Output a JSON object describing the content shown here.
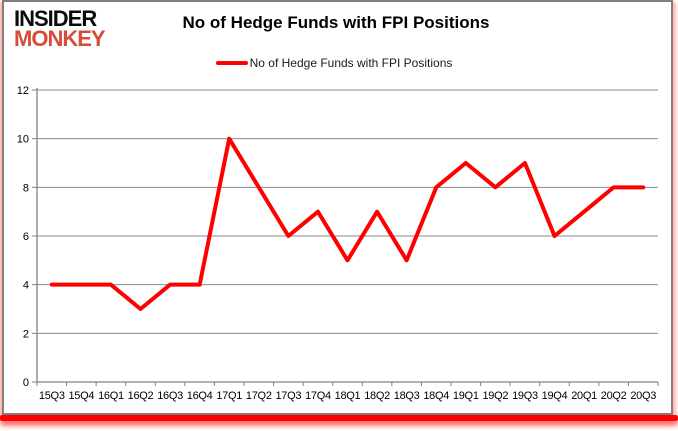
{
  "logo": {
    "line1": "INSIDER",
    "line2": "MONKEY",
    "line1_color": "#0b0b0b",
    "line2_color": "#d54c3b"
  },
  "title": "No of Hedge Funds with FPI Positions",
  "legend": {
    "label": "No of Hedge Funds with FPI Positions",
    "line_color": "#ff0000"
  },
  "chart_data": {
    "type": "line",
    "title": "No of Hedge Funds with FPI Positions",
    "categories": [
      "15Q3",
      "15Q4",
      "16Q1",
      "16Q2",
      "16Q3",
      "16Q4",
      "17Q1",
      "17Q2",
      "17Q3",
      "17Q4",
      "18Q1",
      "18Q2",
      "18Q3",
      "18Q4",
      "19Q1",
      "19Q2",
      "19Q3",
      "19Q4",
      "20Q1",
      "20Q2",
      "20Q3"
    ],
    "series": [
      {
        "name": "No of Hedge Funds with FPI Positions",
        "values": [
          4,
          4,
          4,
          3,
          4,
          4,
          10,
          8,
          6,
          7,
          5,
          7,
          5,
          8,
          9,
          8,
          9,
          6,
          7,
          8,
          8
        ],
        "color": "#ff0000"
      }
    ],
    "xlabel": "",
    "ylabel": "",
    "ylim": [
      0,
      12
    ],
    "yticks": [
      0,
      2,
      4,
      6,
      8,
      10,
      12
    ],
    "grid": true,
    "legend_position": "top-center",
    "marker": "none"
  },
  "colors": {
    "axis": "#808080",
    "grid": "#8a8a8a",
    "line": "#ff0000",
    "frame_border": "#7f7f7f",
    "bottom_bar": "#fe0000"
  }
}
